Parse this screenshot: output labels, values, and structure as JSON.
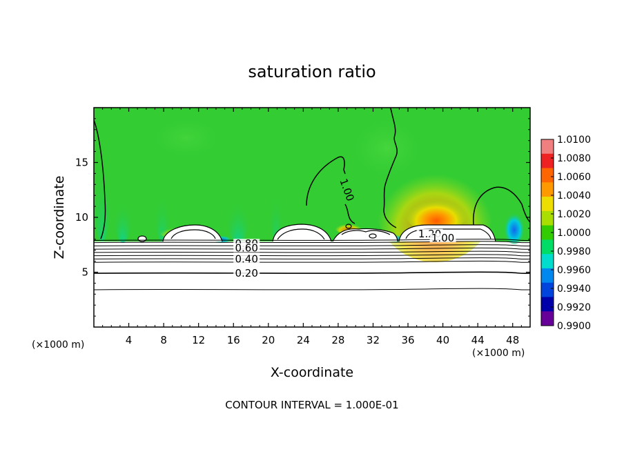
{
  "chart_data": {
    "type": "heatmap",
    "title": "saturation ratio",
    "xlabel": "X-coordinate",
    "ylabel": "Z-coordinate",
    "x_unit_label": "(×1000 m)",
    "y_unit_label": "(×1000 m)",
    "xlim": [
      0,
      50
    ],
    "ylim": [
      0,
      20
    ],
    "x_ticks": [
      4,
      8,
      12,
      16,
      20,
      24,
      28,
      32,
      36,
      40,
      44,
      48
    ],
    "y_ticks": [
      5,
      10,
      15
    ],
    "grid": false,
    "colorbar": {
      "position": "right",
      "min": 0.99,
      "max": 1.01,
      "labels": [
        "1.0100",
        "1.0080",
        "1.0060",
        "1.0040",
        "1.0020",
        "1.0000",
        "0.9980",
        "0.9960",
        "0.9940",
        "0.9920",
        "0.9900"
      ],
      "colors": [
        "#f08080",
        "#ee2222",
        "#ff6600",
        "#ff9900",
        "#eedd00",
        "#aadd00",
        "#33cc00",
        "#00dd66",
        "#00ddcc",
        "#0088ee",
        "#0044dd",
        "#0000aa",
        "#660099"
      ]
    },
    "contour_labels": [
      {
        "text": "1.00",
        "x": 29.0,
        "z": 12.5
      },
      {
        "text": "1.20",
        "x": 38.5,
        "z": 8.5
      },
      {
        "text": "1.00",
        "x": 40.0,
        "z": 8.1
      },
      {
        "text": "0.80",
        "x": 17.5,
        "z": 7.6
      },
      {
        "text": "0.60",
        "x": 17.5,
        "z": 7.2
      },
      {
        "text": "0.40",
        "x": 17.5,
        "z": 6.2
      },
      {
        "text": "0.20",
        "x": 17.5,
        "z": 4.9
      }
    ],
    "contour_lines_z": [
      7.9,
      7.7,
      7.4,
      7.1,
      6.8,
      6.5,
      6.2,
      5.9,
      4.9,
      3.4
    ],
    "footer": "CONTOUR INTERVAL = 1.000E-01"
  }
}
